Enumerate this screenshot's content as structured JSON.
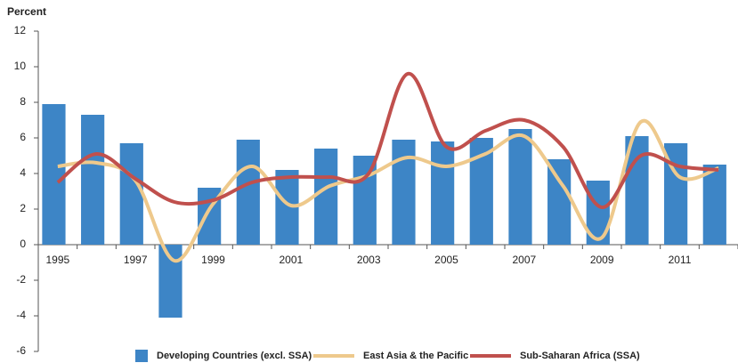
{
  "chart_data": {
    "type": "bar_line",
    "y_axis_label": "Percent",
    "categories": [
      "1995",
      null,
      "1997",
      null,
      "1999",
      null,
      "2001",
      null,
      "2003",
      null,
      "2005",
      null,
      "2007",
      null,
      "2009",
      null,
      "2011",
      null
    ],
    "series": [
      {
        "name": "Developing Countries (excl. SSA)",
        "type": "bar",
        "color": "#3d85c6",
        "values": [
          7.9,
          7.3,
          5.7,
          -4.1,
          3.2,
          5.9,
          4.2,
          5.4,
          5.0,
          5.9,
          5.8,
          6.0,
          6.5,
          4.8,
          3.6,
          6.1,
          5.7,
          4.5
        ]
      },
      {
        "name": "East Asia & the Pacific",
        "type": "line",
        "color": "#eec98c",
        "values": [
          4.4,
          4.6,
          3.6,
          -0.9,
          2.3,
          4.4,
          2.2,
          3.3,
          3.9,
          4.9,
          4.4,
          5.1,
          6.1,
          3.3,
          0.4,
          6.9,
          3.8,
          4.3
        ]
      },
      {
        "name": "Sub-Saharan Africa (SSA)",
        "type": "line",
        "color": "#c0504d",
        "values": [
          3.5,
          5.1,
          3.7,
          2.4,
          2.5,
          3.5,
          3.8,
          3.8,
          4.0,
          9.6,
          5.5,
          6.4,
          7.0,
          5.5,
          2.1,
          5.0,
          4.4,
          4.2
        ]
      }
    ],
    "ylim": [
      -6,
      12
    ],
    "yticks": [
      -6,
      -4,
      -2,
      0,
      2,
      4,
      6,
      8,
      10,
      12
    ],
    "grid": false,
    "legend": "bottom"
  }
}
